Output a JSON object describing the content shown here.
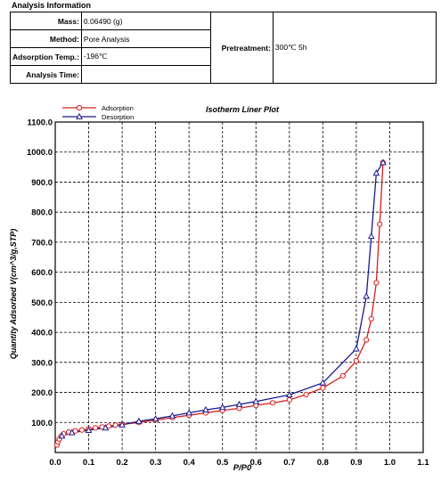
{
  "header": {
    "title": "Analysis Information"
  },
  "info": {
    "mass_label": "Mass:",
    "mass_value": "0.06490 (g)",
    "method_label": "Method:",
    "method_value": "Pore Analysis",
    "temp_label": "Adsorption Temp.:",
    "temp_value": "-196℃",
    "time_label": "Analysis Time:",
    "time_value": "",
    "pretreatment_label": "Pretreatment:",
    "pretreatment_value": "300℃ 5h"
  },
  "colors": {
    "adsorption": "#d81e1e",
    "desorption": "#1a1a8c"
  },
  "chart_data": {
    "type": "line",
    "title": "Isotherm Liner Plot",
    "xlabel": "P/P0",
    "ylabel": "Quantity Adsorbed V(cm^3/g,STP)",
    "xlim": [
      0.0,
      1.1
    ],
    "ylim": [
      0.0,
      1100.0
    ],
    "xticks": [
      "0.0",
      "0.1",
      "0.2",
      "0.3",
      "0.4",
      "0.5",
      "0.6",
      "0.7",
      "0.8",
      "0.9",
      "1.0",
      "1.1"
    ],
    "yticks": [
      "100.0",
      "200.0",
      "300.0",
      "400.0",
      "500.0",
      "600.0",
      "700.0",
      "800.0",
      "900.0",
      "1000.0",
      "1100.0"
    ],
    "grid": true,
    "legend_position": "top-left",
    "series": [
      {
        "name": "Adsorption",
        "marker": "circle",
        "x": [
          0.005,
          0.008,
          0.012,
          0.018,
          0.025,
          0.04,
          0.06,
          0.08,
          0.1,
          0.12,
          0.14,
          0.16,
          0.18,
          0.2,
          0.25,
          0.3,
          0.35,
          0.4,
          0.45,
          0.5,
          0.55,
          0.6,
          0.65,
          0.7,
          0.75,
          0.8,
          0.86,
          0.9,
          0.93,
          0.945,
          0.96,
          0.97,
          0.98
        ],
        "values": [
          25,
          35,
          45,
          55,
          62,
          68,
          72,
          75,
          79,
          82,
          85,
          88,
          91,
          94,
          100,
          108,
          116,
          124,
          132,
          140,
          147,
          157,
          165,
          175,
          193,
          215,
          255,
          305,
          375,
          445,
          565,
          760,
          965
        ]
      },
      {
        "name": "Desorption",
        "marker": "triangle",
        "x": [
          0.98,
          0.96,
          0.945,
          0.93,
          0.9,
          0.8,
          0.7,
          0.6,
          0.55,
          0.5,
          0.45,
          0.4,
          0.35,
          0.3,
          0.25,
          0.2,
          0.15,
          0.1,
          0.05,
          0.02
        ],
        "values": [
          965,
          930,
          720,
          520,
          345,
          232,
          192,
          170,
          160,
          150,
          142,
          132,
          122,
          112,
          104,
          92,
          82,
          74,
          66,
          55
        ]
      }
    ]
  }
}
